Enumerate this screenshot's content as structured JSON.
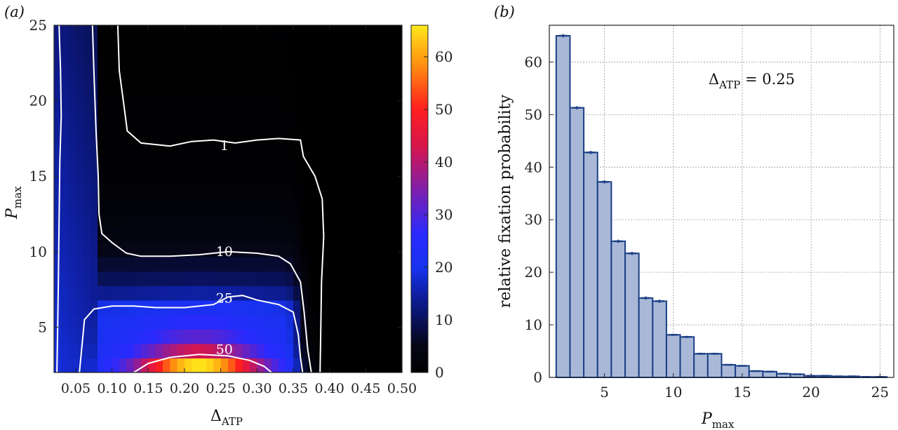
{
  "chart_data": [
    {
      "panel_label": "(a)",
      "type": "heatmap",
      "x_label_main": "Δ",
      "x_label_sub": "ATP",
      "y_label_main": "P",
      "y_label_sub": "max",
      "x_ticks": [
        "0.05",
        "0.10",
        "0.15",
        "0.20",
        "0.25",
        "0.30",
        "0.35",
        "0.40",
        "0.45",
        "0.50"
      ],
      "x_tick_values": [
        0.05,
        0.1,
        0.15,
        0.2,
        0.25,
        0.3,
        0.35,
        0.4,
        0.45,
        0.5
      ],
      "y_ticks": [
        "5",
        "10",
        "15",
        "20",
        "25"
      ],
      "y_tick_values": [
        5,
        10,
        15,
        20,
        25
      ],
      "xlim": [
        0.02,
        0.5
      ],
      "ylim": [
        2,
        25
      ],
      "colorbar_ticks": [
        "0",
        "10",
        "20",
        "30",
        "40",
        "50",
        "60"
      ],
      "colorbar_values": [
        0,
        10,
        20,
        30,
        40,
        50,
        60
      ],
      "colorbar_range": [
        0,
        66
      ],
      "contour_labels": [
        {
          "text": "1",
          "x": 0.255,
          "y": 17.0
        },
        {
          "text": "10",
          "x": 0.255,
          "y": 10.0
        },
        {
          "text": "25",
          "x": 0.255,
          "y": 6.9
        },
        {
          "text": "50",
          "x": 0.255,
          "y": 3.5
        }
      ],
      "contours": [
        {
          "level": 1,
          "points": [
            [
              0.108,
              25
            ],
            [
              0.11,
              22
            ],
            [
              0.117,
              19.5
            ],
            [
              0.121,
              18.0
            ],
            [
              0.14,
              17.2
            ],
            [
              0.18,
              17.0
            ],
            [
              0.21,
              17.3
            ],
            [
              0.24,
              17.4
            ],
            [
              0.27,
              17.2
            ],
            [
              0.3,
              17.4
            ],
            [
              0.33,
              17.5
            ],
            [
              0.36,
              17.4
            ],
            [
              0.364,
              16.3
            ],
            [
              0.38,
              15.0
            ],
            [
              0.39,
              13.5
            ],
            [
              0.392,
              11.0
            ],
            [
              0.389,
              8.0
            ],
            [
              0.388,
              5.0
            ],
            [
              0.387,
              2.0
            ]
          ]
        },
        {
          "level": 10,
          "points": [
            [
              0.073,
              25
            ],
            [
              0.075,
              22
            ],
            [
              0.078,
              18.0
            ],
            [
              0.081,
              15.0
            ],
            [
              0.082,
              12.5
            ],
            [
              0.086,
              11.2
            ],
            [
              0.1,
              10.6
            ],
            [
              0.12,
              9.9
            ],
            [
              0.14,
              9.7
            ],
            [
              0.18,
              9.7
            ],
            [
              0.22,
              9.8
            ],
            [
              0.26,
              10.0
            ],
            [
              0.3,
              9.9
            ],
            [
              0.33,
              9.7
            ],
            [
              0.346,
              9.2
            ],
            [
              0.36,
              8.0
            ],
            [
              0.365,
              6.0
            ],
            [
              0.37,
              3.5
            ],
            [
              0.375,
              2.0
            ]
          ]
        },
        {
          "level": 25,
          "points": [
            [
              0.027,
              25
            ],
            [
              0.029,
              22
            ],
            [
              0.03,
              19.0
            ],
            [
              0.028,
              16.0
            ],
            [
              0.027,
              12.0
            ],
            [
              0.026,
              8.0
            ],
            [
              0.025,
              5.0
            ],
            [
              0.024,
              2.0
            ]
          ]
        },
        {
          "level": 25,
          "points": [
            [
              0.055,
              2.0
            ],
            [
              0.058,
              3.5
            ],
            [
              0.062,
              5.5
            ],
            [
              0.075,
              6.2
            ],
            [
              0.1,
              6.4
            ],
            [
              0.13,
              6.4
            ],
            [
              0.16,
              6.3
            ],
            [
              0.2,
              6.3
            ],
            [
              0.24,
              6.5
            ],
            [
              0.26,
              7.0
            ],
            [
              0.28,
              7.1
            ],
            [
              0.3,
              6.8
            ],
            [
              0.33,
              6.5
            ],
            [
              0.35,
              6.0
            ],
            [
              0.357,
              4.5
            ],
            [
              0.36,
              3.0
            ],
            [
              0.363,
              2.0
            ]
          ]
        },
        {
          "level": 50,
          "points": [
            [
              0.13,
              2.0
            ],
            [
              0.15,
              2.6
            ],
            [
              0.18,
              3.0
            ],
            [
              0.22,
              3.2
            ],
            [
              0.26,
              3.1
            ],
            [
              0.29,
              2.8
            ],
            [
              0.31,
              2.4
            ],
            [
              0.32,
              2.0
            ]
          ]
        }
      ]
    },
    {
      "panel_label": "(b)",
      "type": "bar",
      "title": "",
      "ylabel": "relative fixation probability",
      "xlabel_main": "P",
      "xlabel_sub": "max",
      "annotation_main": "Δ",
      "annotation_sub": "ATP",
      "annotation_value": " = 0.25",
      "xlim": [
        1,
        26
      ],
      "ylim": [
        0,
        67
      ],
      "x_ticks": [
        "5",
        "10",
        "15",
        "20",
        "25"
      ],
      "x_tick_values": [
        5,
        10,
        15,
        20,
        25
      ],
      "y_ticks": [
        "0",
        "10",
        "20",
        "30",
        "40",
        "50",
        "60"
      ],
      "y_tick_values": [
        0,
        10,
        20,
        30,
        40,
        50,
        60
      ],
      "grid": true,
      "x": [
        2,
        3,
        4,
        5,
        6,
        7,
        8,
        9,
        10,
        11,
        12,
        13,
        14,
        15,
        16,
        17,
        18,
        19,
        20,
        21,
        22,
        23,
        24,
        25
      ],
      "values": [
        65.0,
        51.3,
        42.8,
        37.2,
        25.9,
        23.6,
        15.1,
        14.5,
        8.1,
        7.7,
        4.5,
        4.5,
        2.4,
        2.2,
        1.2,
        1.1,
        0.7,
        0.6,
        0.3,
        0.3,
        0.2,
        0.2,
        0.1,
        0.1
      ],
      "errors": [
        0.3,
        0.3,
        0.3,
        0.3,
        0.3,
        0.3,
        0.3,
        0.3,
        0.2,
        0.2,
        0.2,
        0.2,
        0.1,
        0.1,
        0.1,
        0.1,
        0.1,
        0.1,
        0.1,
        0.1,
        0.05,
        0.05,
        0.05,
        0.05
      ],
      "bar_color": "#a8b8d6",
      "edge_color": "#1b3f86"
    }
  ]
}
